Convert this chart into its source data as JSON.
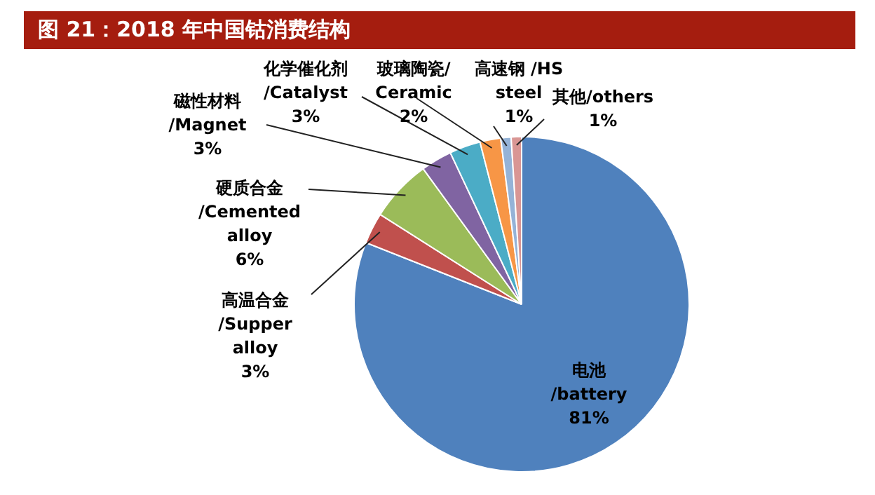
{
  "chart_data": {
    "type": "pie",
    "title": "图 21：2018 年中国钴消费结构",
    "categories": [
      "电池\n/battery",
      "高温合金\n/Supper\nalloy",
      "硬质合金\n/Cemented\nalloy",
      "磁性材料\n/Magnet",
      "化学催化剂\n/Catalyst",
      "玻璃陶瓷/\nCeramic",
      "高速钢 /HS\nsteel",
      "其他/others"
    ],
    "values": [
      81,
      3,
      6,
      3,
      3,
      2,
      1,
      1
    ],
    "value_labels": [
      "81%",
      "3%",
      "6%",
      "3%",
      "3%",
      "2%",
      "1%",
      "1%"
    ],
    "colors": [
      "#4f81bd",
      "#c0504d",
      "#9bbb59",
      "#8064a2",
      "#4bacc6",
      "#f79646",
      "#95b3d7",
      "#d99694"
    ]
  }
}
